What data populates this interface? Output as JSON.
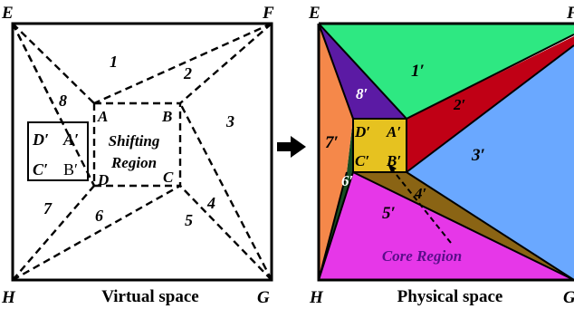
{
  "virtual": {
    "corners": {
      "E": "E",
      "F": "F",
      "G": "G",
      "H": "H"
    },
    "inner": {
      "A": "A",
      "B": "B",
      "C": "C",
      "D": "D"
    },
    "regions": [
      "1",
      "2",
      "3",
      "4",
      "5",
      "6",
      "7",
      "8"
    ],
    "shifting_label_line1": "Shifting",
    "shifting_label_line2": "Region",
    "box": {
      "D": "D′",
      "A": "A′",
      "C": "C′",
      "B": "B′"
    },
    "caption": "Virtual space"
  },
  "physical": {
    "corners": {
      "E": "E",
      "F": "F",
      "G": "G",
      "H": "H"
    },
    "inner": {
      "A": "A′",
      "B": "B′",
      "C": "C′",
      "D": "D′"
    },
    "regions": [
      "1′",
      "2′",
      "3′",
      "4′",
      "5′",
      "6′",
      "7′",
      "8′"
    ],
    "core_label": "Core Region",
    "caption": "Physical space"
  },
  "colors": {
    "r1": "#2ee882",
    "r2": "#c00015",
    "r3": "#6aa8ff",
    "r4": "#8a6414",
    "r5": "#e637e8",
    "r6": "#174d22",
    "r7": "#f5884a",
    "r8": "#5b1aa4",
    "core": "#e6c220",
    "core_text": "#5a0e8a"
  }
}
